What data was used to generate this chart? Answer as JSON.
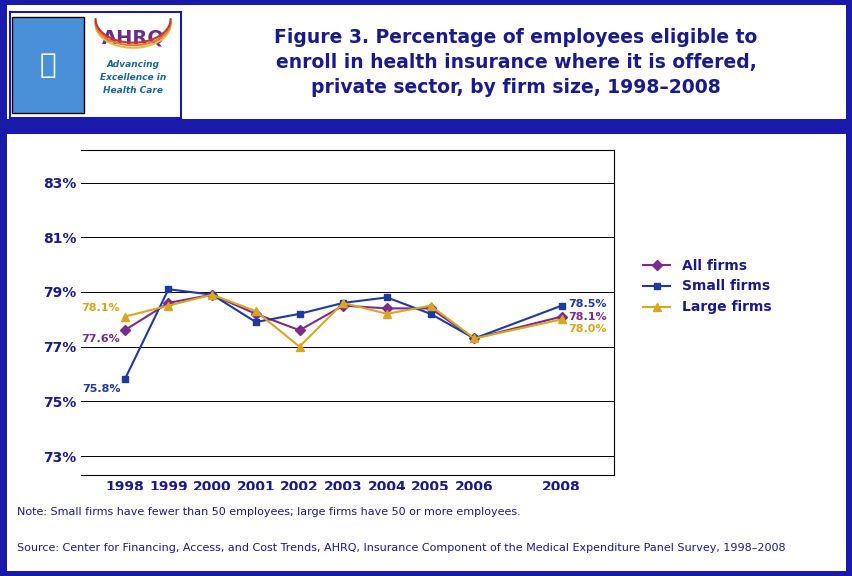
{
  "title": "Figure 3. Percentage of employees eligible to\nenroll in health insurance where it is offered,\nprivate sector, by firm size, 1998–2008",
  "years": [
    1998,
    1999,
    2000,
    2001,
    2002,
    2003,
    2004,
    2005,
    2006,
    2008
  ],
  "all_firms": [
    77.6,
    78.6,
    78.9,
    78.2,
    77.6,
    78.5,
    78.4,
    78.4,
    77.3,
    78.1
  ],
  "small_firms": [
    75.8,
    79.1,
    78.9,
    77.9,
    78.2,
    78.6,
    78.8,
    78.2,
    77.3,
    78.5
  ],
  "large_firms": [
    78.1,
    78.5,
    78.9,
    78.3,
    77.0,
    78.6,
    78.2,
    78.5,
    77.3,
    78.0
  ],
  "all_color": "#7B2C8B",
  "small_color": "#1F3A9E",
  "large_color": "#DAA520",
  "title_color": "#1a1a8c",
  "note_text": "Note: Small firms have fewer than 50 employees; large firms have 50 or more employees.",
  "source_text": "Source: Center for Financing, Access, and Cost Trends, AHRQ, Insurance Component of the Medical Expenditure Panel Survey, 1998–2008",
  "yticks": [
    73,
    75,
    77,
    79,
    81,
    83
  ],
  "ylim": [
    72.3,
    84.2
  ],
  "background_color": "#ffffff",
  "border_color": "#1a1aaa",
  "blue_bar_color": "#1a1aaa",
  "footer_text_color": "#1a1a8c",
  "logo_hhs_color": "#3a7abf",
  "logo_bg_color": "#4a90d9",
  "logo_text_color": "#6B2D8B"
}
